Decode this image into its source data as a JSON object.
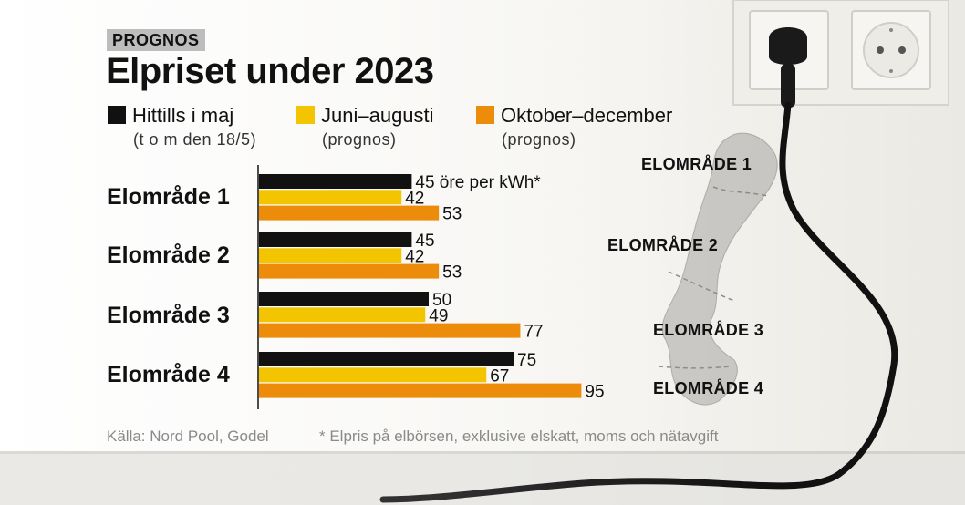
{
  "tag": "PROGNOS",
  "title": "Elpriset under 2023",
  "colors": {
    "black": "#111111",
    "yellow": "#f2c500",
    "orange": "#ec8c0a"
  },
  "legend": [
    {
      "label": "Hittills i maj",
      "sub": "(t o m den 18/5)",
      "color": "#111111"
    },
    {
      "label": "Juni–augusti",
      "sub": "(prognos)",
      "color": "#f2c500"
    },
    {
      "label": "Oktober–december",
      "sub": "(prognos)",
      "color": "#ec8c0a"
    }
  ],
  "chart_data": {
    "type": "bar",
    "orientation": "horizontal",
    "categories": [
      "Elområde 1",
      "Elområde 2",
      "Elområde 3",
      "Elområde 4"
    ],
    "series": [
      {
        "name": "Hittills i maj",
        "values": [
          45,
          45,
          50,
          75
        ],
        "color": "#111111"
      },
      {
        "name": "Juni–augusti",
        "values": [
          42,
          42,
          49,
          67
        ],
        "color": "#f2c500"
      },
      {
        "name": "Oktober–december",
        "values": [
          53,
          53,
          77,
          95
        ],
        "color": "#ec8c0a"
      }
    ],
    "first_value_suffix": " öre per kWh*",
    "title": "Elpriset under 2023",
    "xlabel": "",
    "ylabel": "",
    "grid": false
  },
  "map_labels": [
    "ELOMRÅDE 1",
    "ELOMRÅDE 2",
    "ELOMRÅDE 3",
    "ELOMRÅDE 4"
  ],
  "footer": {
    "source": "Källa: Nord Pool, Godel",
    "note": "* Elpris på elbörsen, exklusive elskatt, moms och nätavgift"
  }
}
